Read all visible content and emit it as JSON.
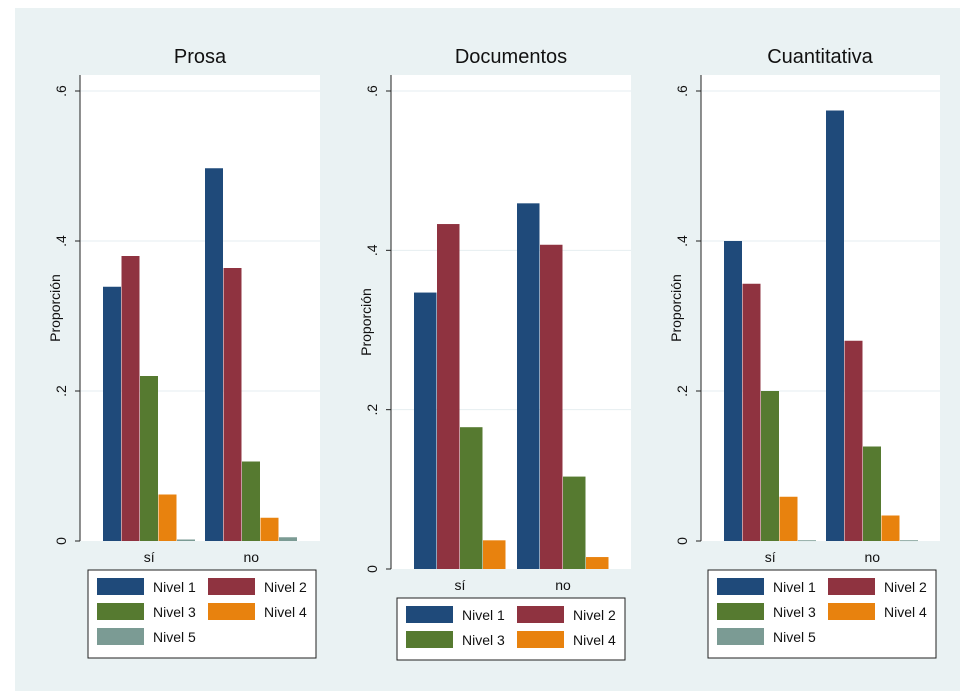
{
  "colors": {
    "nivel_1": "#1f4a7a",
    "nivel_2": "#8f3340",
    "nivel_3": "#567a30",
    "nivel_4": "#e8820e",
    "nivel_5": "#7b9b94",
    "background": "#eaf2f3",
    "plot_background": "#ffffff"
  },
  "chart_data": [
    {
      "type": "bar",
      "title": "Prosa",
      "ylabel": "Proporción",
      "ylim": [
        0,
        0.6
      ],
      "yticks": [
        0,
        0.2,
        0.4,
        0.6
      ],
      "ytick_labels": [
        "0",
        ".2",
        ".4",
        ".6"
      ],
      "categories": [
        "sí",
        "no"
      ],
      "series": [
        {
          "name": "Nivel 1",
          "values": [
            0.339,
            0.497
          ]
        },
        {
          "name": "Nivel 2",
          "values": [
            0.38,
            0.364
          ]
        },
        {
          "name": "Nivel 3",
          "values": [
            0.22,
            0.106
          ]
        },
        {
          "name": "Nivel 4",
          "values": [
            0.062,
            0.031
          ]
        },
        {
          "name": "Nivel 5",
          "values": [
            0.002,
            0.005
          ]
        }
      ],
      "legend_position": "bottom",
      "grid": true
    },
    {
      "type": "bar",
      "title": "Documentos",
      "ylabel": "Proporción",
      "ylim": [
        0,
        0.6
      ],
      "yticks": [
        0,
        0.2,
        0.4,
        0.6
      ],
      "ytick_labels": [
        "0",
        ".2",
        ".4",
        ".6"
      ],
      "categories": [
        "sí",
        "no"
      ],
      "series": [
        {
          "name": "Nivel 1",
          "values": [
            0.347,
            0.459
          ]
        },
        {
          "name": "Nivel 2",
          "values": [
            0.433,
            0.407
          ]
        },
        {
          "name": "Nivel 3",
          "values": [
            0.178,
            0.116
          ]
        },
        {
          "name": "Nivel 4",
          "values": [
            0.036,
            0.015
          ]
        }
      ],
      "legend_position": "bottom",
      "grid": true
    },
    {
      "type": "bar",
      "title": "Cuantitativa",
      "ylabel": "Proporción",
      "ylim": [
        0,
        0.6
      ],
      "yticks": [
        0,
        0.2,
        0.4,
        0.6
      ],
      "ytick_labels": [
        "0",
        ".2",
        ".4",
        ".6"
      ],
      "categories": [
        "sí",
        "no"
      ],
      "series": [
        {
          "name": "Nivel 1",
          "values": [
            0.4,
            0.574
          ]
        },
        {
          "name": "Nivel 2",
          "values": [
            0.343,
            0.267
          ]
        },
        {
          "name": "Nivel 3",
          "values": [
            0.2,
            0.126
          ]
        },
        {
          "name": "Nivel 4",
          "values": [
            0.059,
            0.034
          ]
        },
        {
          "name": "Nivel 5",
          "values": [
            0.001,
            0.001
          ]
        }
      ],
      "legend_position": "bottom",
      "grid": true
    }
  ]
}
